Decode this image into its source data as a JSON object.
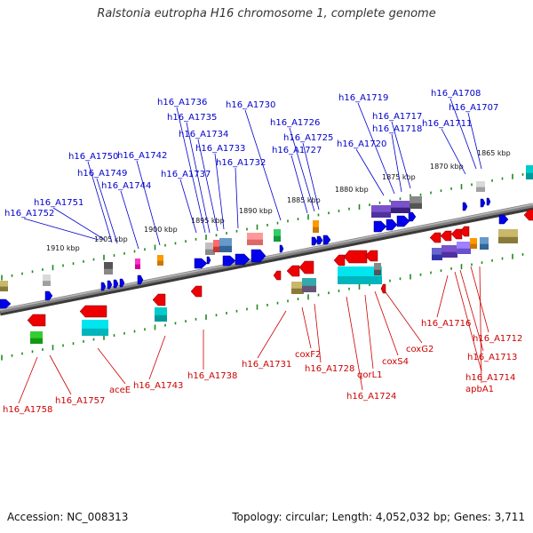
{
  "title": "Ralstonia eutropha H16 chromosome 1, complete genome",
  "footer": {
    "accession": "Accession: NC_008313",
    "stats": "Topology: circular; Length: 4,052,032 bp; Genes: 3,711"
  },
  "colors": {
    "forward_label": "#0000cc",
    "reverse_label": "#cc0000",
    "backbone": "#808080"
  },
  "ruler": [
    "1910 kbp",
    "1905 kbp",
    "1900 kbp",
    "1895 kbp",
    "1890 kbp",
    "1885 kbp",
    "1880 kbp",
    "1875 kbp",
    "1870 kbp",
    "1865 kbp"
  ],
  "forward_labels": [
    "h16_A1752",
    "h16_A1751",
    "h16_A1750",
    "h16_A1749",
    "h16_A1744",
    "h16_A1742",
    "h16_A1737",
    "h16_A1736",
    "h16_A1735",
    "h16_A1734",
    "h16_A1733",
    "h16_A1732",
    "h16_A1730",
    "h16_A1727",
    "h16_A1726",
    "h16_A1725",
    "h16_A1720",
    "h16_A1719",
    "h16_A1718",
    "h16_A1717",
    "h16_A1711",
    "h16_A1708",
    "h16_A1707"
  ],
  "reverse_labels": [
    "h16_A1758",
    "h16_A1757",
    "aceE",
    "h16_A1743",
    "h16_A1738",
    "h16_A1731",
    "coxF2",
    "h16_A1728",
    "h16_A1724",
    "qorL1",
    "coxS4",
    "coxG2",
    "h16_A1716",
    "h16_A1712",
    "h16_A1713",
    "h16_A1714",
    "apbA1"
  ]
}
